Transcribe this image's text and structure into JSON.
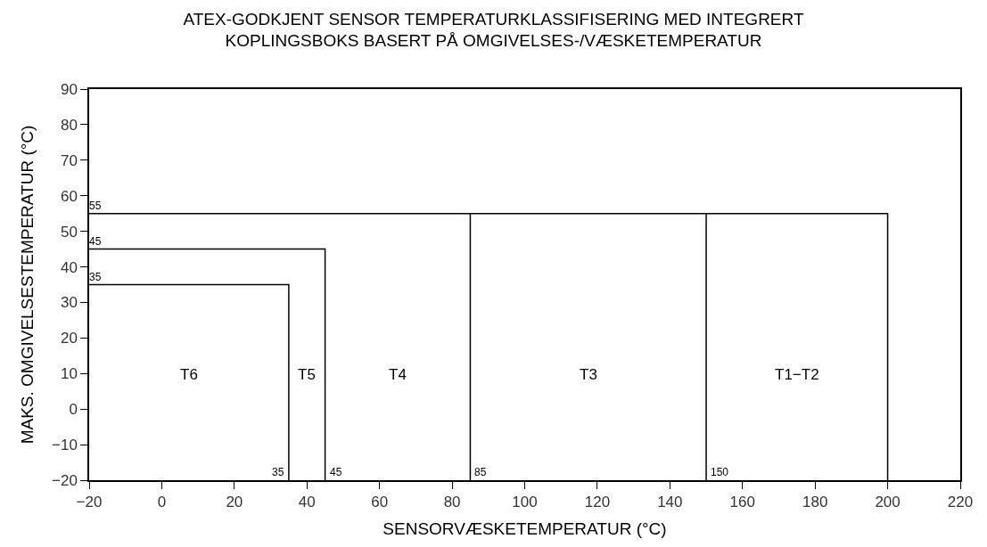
{
  "chart_data": {
    "type": "line",
    "title": "ATEX-GODKJENT SENSOR TEMPERATURKLASSIFISERING MED INTEGRERT\nKOPLINGSBOKS BASERT PÅ OMGIVELSES-/VÆSKETEMPERATUR",
    "xlabel": "SENSORVÆSKETEMPERATUR (°C)",
    "ylabel": "MAKS. OMGIVELSESTEMPERATUR (°C)",
    "series": [
      {
        "color": "#000000",
        "x": [
          -20,
          35,
          35
        ],
        "values": [
          35,
          35,
          -20
        ]
      },
      {
        "color": "#000000",
        "x": [
          -20,
          45,
          45
        ],
        "values": [
          45,
          45,
          -20
        ]
      },
      {
        "color": "#000000",
        "x": [
          -20,
          200,
          200
        ],
        "values": [
          55,
          55,
          -20
        ]
      },
      {
        "color": "#000000",
        "x": [
          85,
          85
        ],
        "values": [
          55,
          -20
        ]
      },
      {
        "color": "#000000",
        "x": [
          150,
          150
        ],
        "values": [
          55,
          -20
        ]
      }
    ],
    "xlim": [
      -20,
      220
    ],
    "ylim": [
      -20,
      90
    ],
    "xticks": [
      {
        "value": -20,
        "label": "−20"
      },
      0,
      20,
      40,
      60,
      80,
      100,
      120,
      140,
      160,
      180,
      200,
      220
    ],
    "yticks": [
      {
        "value": -20,
        "label": "−20"
      },
      {
        "value": -10,
        "label": "−10"
      },
      0,
      10,
      20,
      30,
      40,
      50,
      60,
      70,
      80,
      90
    ],
    "annotations": [
      {
        "text": "35",
        "x": 35,
        "y": -20
      },
      {
        "text": "45",
        "x": 45,
        "y": -20
      },
      {
        "text": "85",
        "x": 85,
        "y": -20
      },
      {
        "text": "150",
        "x": 150,
        "y": -20
      },
      {
        "text": "35",
        "x": -20,
        "y": 35
      },
      {
        "text": "45",
        "x": -20,
        "y": 45
      },
      {
        "text": "55",
        "x": -20,
        "y": 55
      },
      "T6",
      "T5",
      "T4",
      "T3",
      "T1−T2"
    ],
    "marker": "none",
    "line_style": "solid"
  }
}
